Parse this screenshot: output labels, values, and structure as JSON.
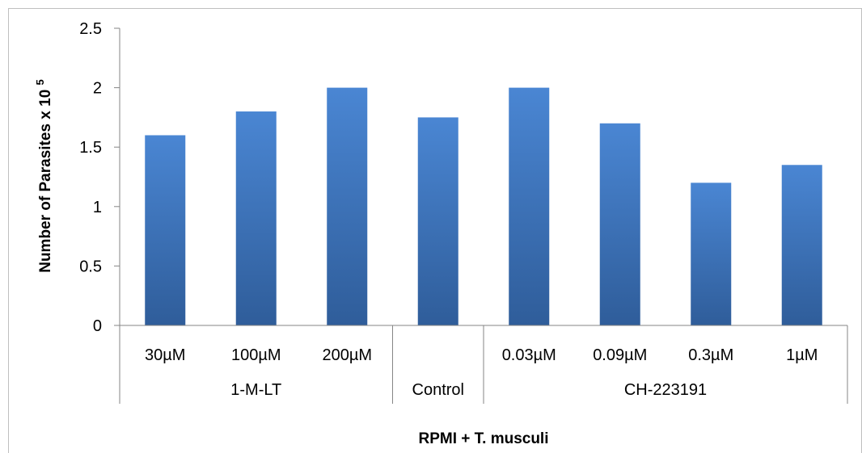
{
  "chart_data": {
    "type": "bar",
    "title": "",
    "xlabel": "RPMI + T. musculi",
    "ylabel": {
      "main": "Number of Parasites x 10",
      "superscript": "5"
    },
    "ylim": [
      0,
      2.5
    ],
    "yticks": [
      "0",
      "0.5",
      "1",
      "1.5",
      "2",
      "2.5"
    ],
    "ytick_values": [
      0,
      0.5,
      1,
      1.5,
      2,
      2.5
    ],
    "grid": false,
    "legend": "none",
    "categories": [
      "30µM",
      "100µM",
      "200µM",
      "",
      "0.03µM",
      "0.09µM",
      "0.3µM",
      "1µM"
    ],
    "groups": [
      {
        "label": "1-M-LT",
        "count": 3
      },
      {
        "label": "Control",
        "count": 1
      },
      {
        "label": "CH-223191",
        "count": 4
      }
    ],
    "values": [
      1.6,
      1.8,
      2.0,
      1.75,
      2.0,
      1.7,
      1.2,
      1.35
    ],
    "colors": {
      "bar_top": "#4a86d3",
      "bar_bottom": "#2f5d9a",
      "axis": "#868686",
      "frame": "#bfbfbf"
    }
  }
}
